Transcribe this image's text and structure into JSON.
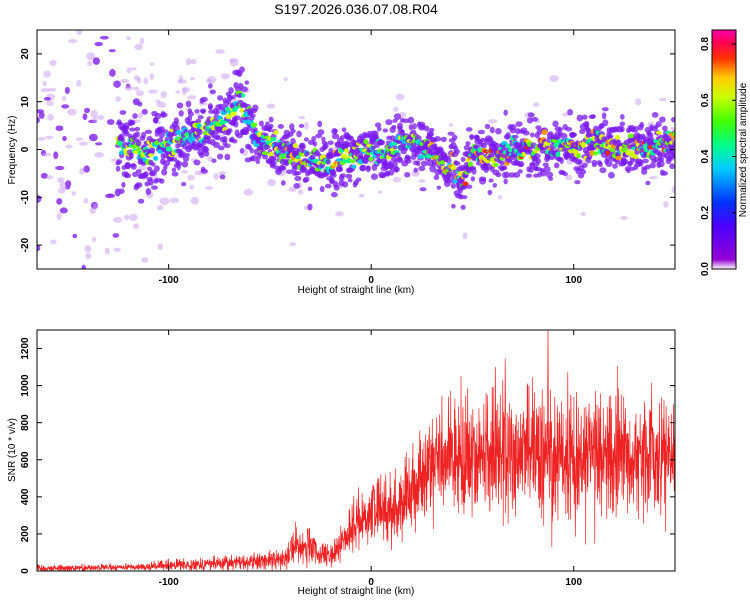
{
  "title": "S197.2026.036.07.08.R04",
  "colors": {
    "snr_line": "#ee2222",
    "axis": "#000000",
    "spectrogram_sparse": "#d8b8f4",
    "spectrogram_low": "#9a3cf0"
  },
  "chart_data": [
    {
      "type": "heatmap",
      "title": "S197.2026.036.07.08.R04",
      "xlabel": "Height of straight line (km)",
      "ylabel": "Frequency (Hz)",
      "xlim": [
        -165,
        150
      ],
      "ylim": [
        -25,
        25
      ],
      "x_ticks": [
        -100,
        0,
        100
      ],
      "y_ticks": [
        -20,
        -10,
        0,
        10,
        20
      ],
      "grid": false,
      "colorbar": {
        "label": "Normalized spectral amplitude",
        "range": [
          0.0,
          0.85
        ],
        "ticks": [
          0.0,
          0.2,
          0.4,
          0.6,
          0.8
        ],
        "colormap": "rainbow (violet → blue → cyan → green → yellow → red → magenta)"
      },
      "ridge_center_frequency": {
        "x": [
          -125,
          -110,
          -95,
          -80,
          -70,
          -65,
          -58,
          -50,
          -40,
          -30,
          -20,
          -10,
          0,
          10,
          20,
          30,
          40,
          45,
          50,
          60,
          70,
          80,
          90,
          100,
          110,
          120,
          130,
          140,
          150
        ],
        "y": [
          1,
          -1,
          2,
          4,
          7,
          10,
          3,
          1,
          -1,
          -3,
          -3,
          -1,
          -1,
          0,
          2,
          -1,
          -4,
          -7,
          -1,
          -1,
          0,
          0,
          1,
          1,
          1,
          0,
          0,
          1,
          2
        ]
      },
      "peak_amplitude_note": "strongest ridge amplitudes (~0.7–0.85) for heights 40–145 km"
    },
    {
      "type": "line",
      "xlabel": "Height of straight line (km)",
      "ylabel": "SNR (10 * v/v)",
      "xlim": [
        -165,
        150
      ],
      "ylim": [
        0,
        1300
      ],
      "x_ticks": [
        -100,
        0,
        100
      ],
      "y_ticks": [
        0,
        200,
        400,
        600,
        800,
        1000,
        1200
      ],
      "grid": false,
      "series": [
        {
          "color": "#ee2222",
          "envelope": {
            "x": [
              -165,
              -140,
              -120,
              -100,
              -80,
              -60,
              -45,
              -40,
              -35,
              -30,
              -25,
              -20,
              -15,
              -10,
              -5,
              0,
              5,
              10,
              15,
              20,
              25,
              30,
              40,
              50,
              60,
              70,
              80,
              90,
              100,
              110,
              120,
              130,
              140,
              150
            ],
            "mean": [
              15,
              18,
              20,
              30,
              40,
              50,
              60,
              110,
              150,
              120,
              80,
              70,
              150,
              230,
              280,
              320,
              340,
              330,
              380,
              450,
              500,
              600,
              620,
              610,
              620,
              630,
              630,
              640,
              620,
              630,
              630,
              620,
              630,
              640
            ],
            "spread": [
              10,
              10,
              10,
              15,
              20,
              25,
              30,
              50,
              60,
              60,
              40,
              40,
              50,
              70,
              80,
              90,
              90,
              100,
              110,
              120,
              130,
              140,
              160,
              170,
              190,
              200,
              200,
              200,
              200,
              190,
              180,
              180,
              180,
              160
            ]
          },
          "notable_peaks": [
            {
              "x": 61,
              "y": 1100
            },
            {
              "x": 87,
              "y": 1300
            },
            {
              "x": 149,
              "y": 900
            }
          ]
        }
      ]
    }
  ]
}
